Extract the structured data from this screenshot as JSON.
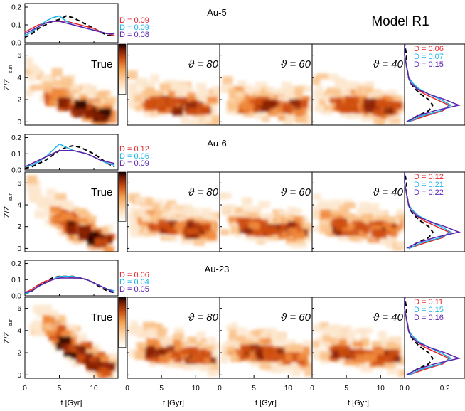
{
  "figure_title": "Model R1",
  "x_axis_label": "t [Gyr]",
  "y_axis_label": "Z/Z",
  "y_axis_label_sub": "sun",
  "true_label": "True",
  "theta_symbol": "ϑ",
  "colors": {
    "red": "#e8232a",
    "cyan": "#19b4ea",
    "purple": "#5b22b0",
    "true": "#000000"
  },
  "chart_data": [
    {
      "type": "line",
      "name": "Au-5",
      "title": "Au-5",
      "panel": "age-distribution",
      "xlim": [
        0,
        13.5
      ],
      "ylim": [
        0,
        0.22
      ],
      "x": [
        0,
        1,
        2,
        3,
        4,
        5,
        6,
        7,
        8,
        9,
        10,
        11,
        12,
        13
      ],
      "series": [
        {
          "style": "dashed",
          "color": "#000000",
          "values": [
            0.03,
            0.05,
            0.08,
            0.1,
            0.12,
            0.13,
            0.15,
            0.14,
            0.12,
            0.1,
            0.08,
            0.06,
            0.04,
            0.04
          ]
        },
        {
          "color": "#e8232a",
          "values": [
            0.06,
            0.08,
            0.1,
            0.11,
            0.12,
            0.12,
            0.12,
            0.11,
            0.1,
            0.09,
            0.08,
            0.06,
            0.05,
            0.04
          ]
        },
        {
          "color": "#19b4ea",
          "values": [
            0.04,
            0.06,
            0.09,
            0.12,
            0.14,
            0.15,
            0.12,
            0.1,
            0.09,
            0.08,
            0.07,
            0.06,
            0.05,
            0.05
          ]
        },
        {
          "color": "#5b22b0",
          "values": [
            0.05,
            0.07,
            0.09,
            0.11,
            0.12,
            0.12,
            0.11,
            0.1,
            0.09,
            0.08,
            0.07,
            0.06,
            0.05,
            0.05
          ]
        }
      ],
      "d_labels": [
        "D = 0.09",
        "D = 0.09",
        "D = 0.08"
      ],
      "row_heat": {
        "thetas": [
          "80",
          "60",
          "40"
        ]
      },
      "z_profile": {
        "d_labels": [
          "D = 0.06",
          "D = 0.07",
          "D = 0.15"
        ]
      }
    },
    {
      "type": "line",
      "name": "Au-6",
      "title": "Au-6",
      "panel": "age-distribution",
      "xlim": [
        0,
        13.5
      ],
      "ylim": [
        0,
        0.22
      ],
      "x": [
        0,
        1,
        2,
        3,
        4,
        5,
        6,
        7,
        8,
        9,
        10,
        11,
        12,
        13
      ],
      "series": [
        {
          "style": "dashed",
          "color": "#000000",
          "values": [
            0.01,
            0.02,
            0.04,
            0.06,
            0.09,
            0.12,
            0.14,
            0.15,
            0.14,
            0.12,
            0.1,
            0.07,
            0.04,
            0.02
          ]
        },
        {
          "color": "#e8232a",
          "values": [
            0.02,
            0.04,
            0.06,
            0.08,
            0.1,
            0.12,
            0.12,
            0.12,
            0.11,
            0.1,
            0.08,
            0.06,
            0.04,
            0.03
          ]
        },
        {
          "color": "#19b4ea",
          "values": [
            0.02,
            0.03,
            0.05,
            0.08,
            0.12,
            0.16,
            0.14,
            0.12,
            0.11,
            0.1,
            0.08,
            0.06,
            0.04,
            0.03
          ]
        },
        {
          "color": "#5b22b0",
          "values": [
            0.02,
            0.04,
            0.06,
            0.08,
            0.1,
            0.12,
            0.12,
            0.12,
            0.11,
            0.1,
            0.08,
            0.06,
            0.05,
            0.04
          ]
        }
      ],
      "d_labels": [
        "D = 0.12",
        "D = 0.06",
        "D = 0.09"
      ],
      "row_heat": {
        "thetas": [
          "80",
          "60",
          "40"
        ]
      },
      "z_profile": {
        "d_labels": [
          "D = 0.12",
          "D = 0.21",
          "D = 0.22"
        ]
      }
    },
    {
      "type": "line",
      "name": "Au-23",
      "title": "Au-23",
      "panel": "age-distribution",
      "xlim": [
        0,
        13.5
      ],
      "ylim": [
        0,
        0.22
      ],
      "x": [
        0,
        1,
        2,
        3,
        4,
        5,
        6,
        7,
        8,
        9,
        10,
        11,
        12,
        13
      ],
      "series": [
        {
          "style": "dashed",
          "color": "#000000",
          "values": [
            0.01,
            0.03,
            0.06,
            0.09,
            0.11,
            0.12,
            0.12,
            0.12,
            0.11,
            0.1,
            0.08,
            0.05,
            0.03,
            0.02
          ]
        },
        {
          "color": "#e8232a",
          "values": [
            0.02,
            0.04,
            0.07,
            0.09,
            0.1,
            0.11,
            0.12,
            0.11,
            0.11,
            0.1,
            0.08,
            0.06,
            0.04,
            0.03
          ]
        },
        {
          "color": "#19b4ea",
          "values": [
            0.01,
            0.03,
            0.06,
            0.08,
            0.1,
            0.12,
            0.12,
            0.12,
            0.11,
            0.1,
            0.08,
            0.06,
            0.04,
            0.03
          ]
        },
        {
          "color": "#5b22b0",
          "values": [
            0.02,
            0.03,
            0.06,
            0.08,
            0.1,
            0.11,
            0.11,
            0.11,
            0.11,
            0.1,
            0.08,
            0.06,
            0.04,
            0.02
          ]
        }
      ],
      "d_labels": [
        "D = 0.06",
        "D = 0.04",
        "D = 0.05"
      ],
      "row_heat": {
        "thetas": [
          "80",
          "60",
          "40"
        ]
      },
      "z_profile": {
        "d_labels": [
          "D = 0.11",
          "D = 0.15",
          "D = 0.16"
        ]
      }
    }
  ]
}
